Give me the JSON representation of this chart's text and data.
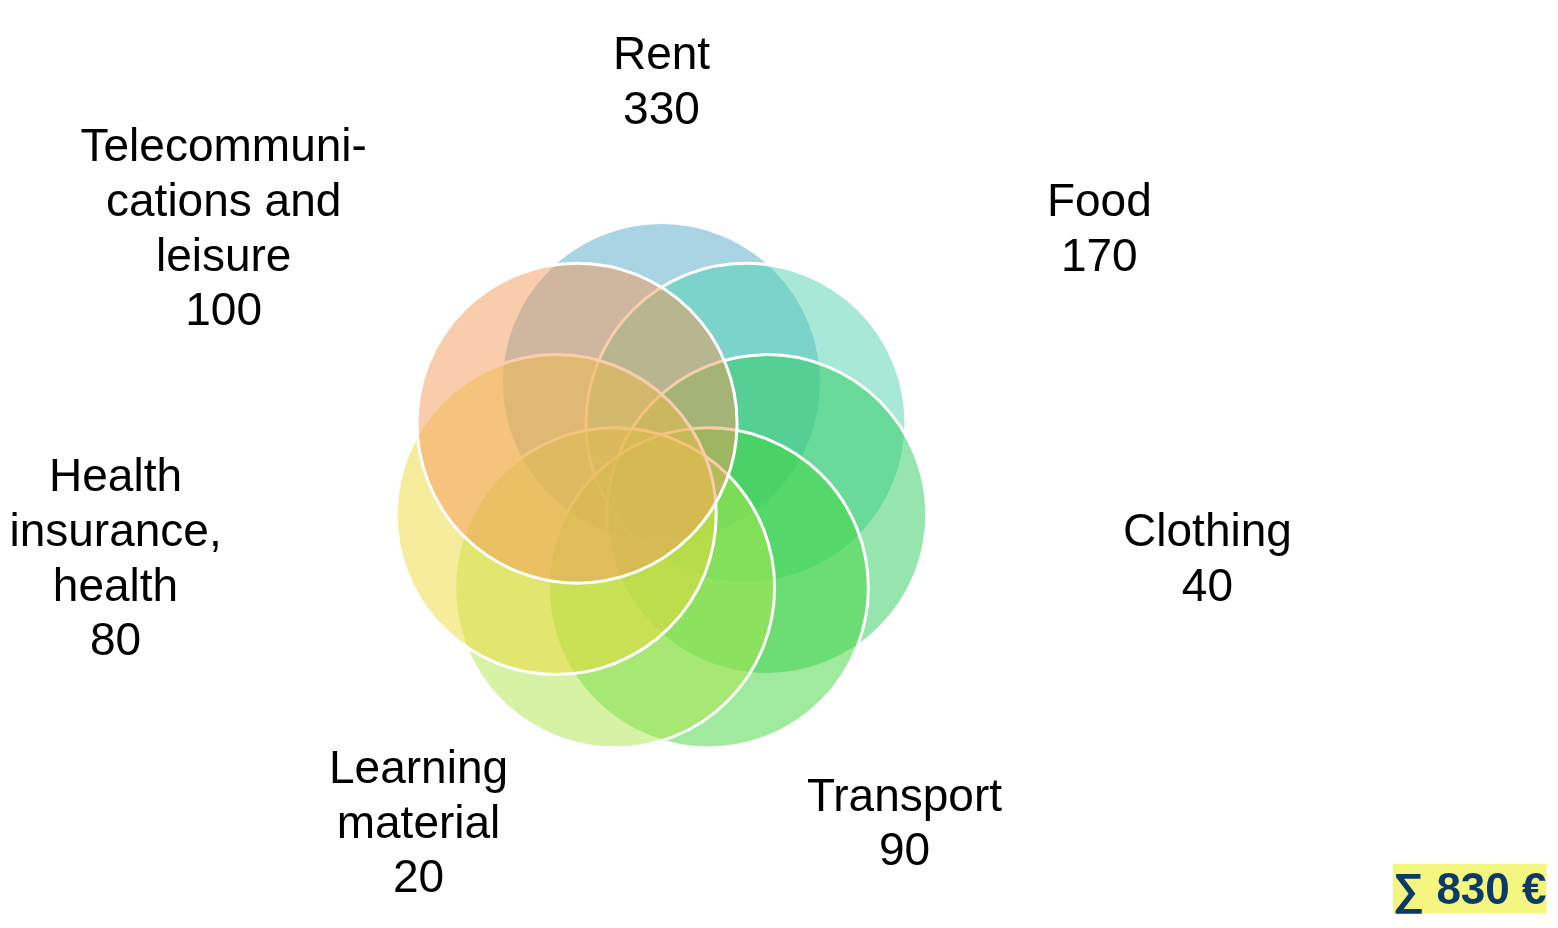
{
  "chart_data": {
    "type": "other",
    "categories": [
      "Rent",
      "Food",
      "Clothing",
      "Transport",
      "Learning\nmaterial",
      "Health\ninsurance,\nhealth",
      "Telecommuni-\ncations and\nleisure"
    ],
    "values": [
      330,
      170,
      40,
      90,
      20,
      80,
      100
    ],
    "colors": [
      "#52a9c7",
      "#4fd1b0",
      "#2ecc5e",
      "#3fd63a",
      "#aee64a",
      "#eed93a",
      "#f39a5a"
    ],
    "data_labels": true,
    "annotations": [
      "∑ 830 €"
    ]
  }
}
